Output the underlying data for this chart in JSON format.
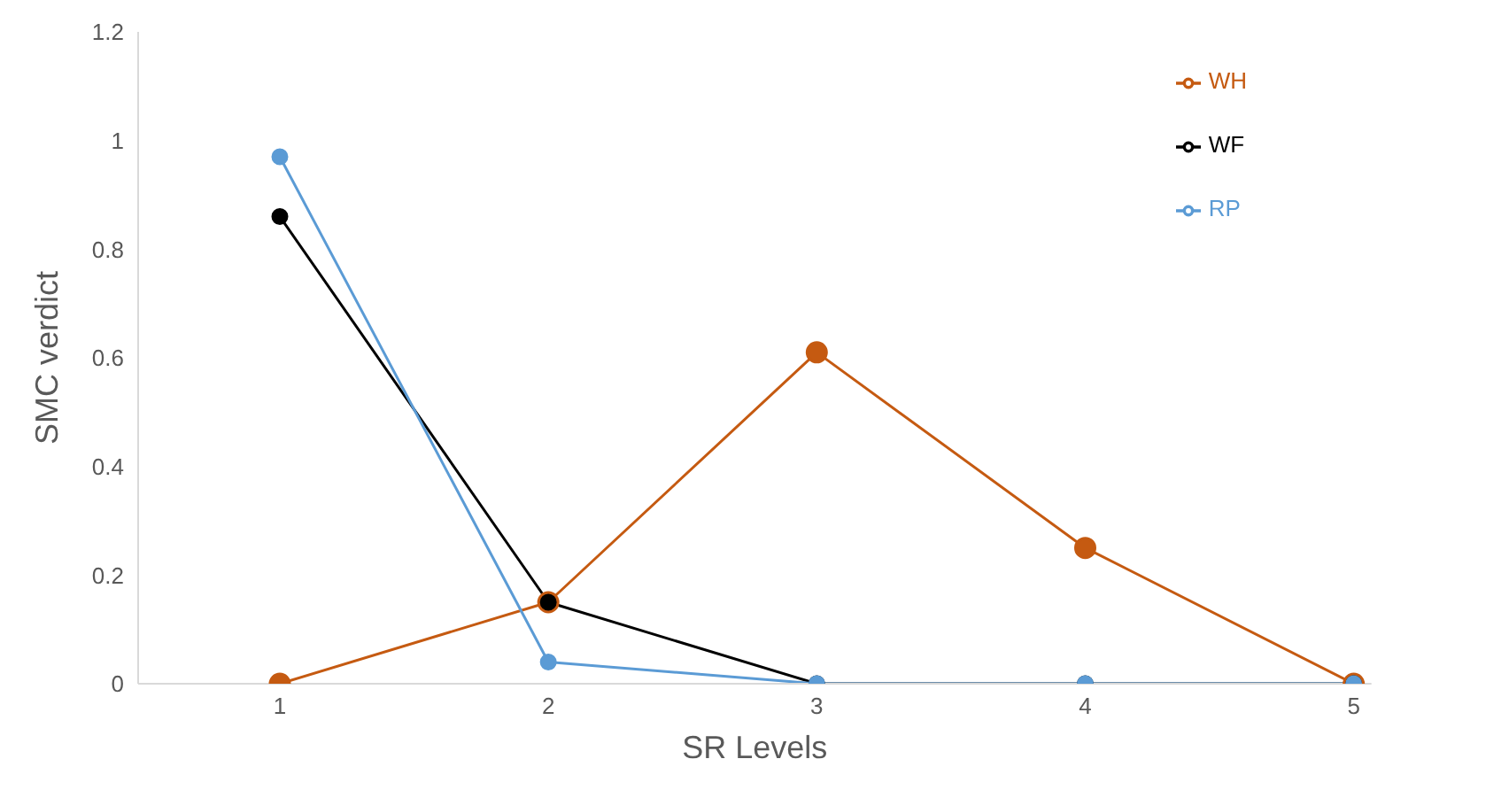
{
  "chart_data": {
    "type": "line",
    "xlabel": "SR Levels",
    "ylabel": "SMC verdict",
    "categories": [
      "1",
      "2",
      "3",
      "4",
      "5"
    ],
    "series": [
      {
        "name": "WH",
        "color": "#c55a11",
        "values": [
          0,
          0.15,
          0.61,
          0.25,
          0
        ]
      },
      {
        "name": "WF",
        "color": "#000000",
        "values": [
          0.86,
          0.15,
          0,
          0,
          0
        ]
      },
      {
        "name": "RP",
        "color": "#5b9bd5",
        "values": [
          0.97,
          0.04,
          0,
          0,
          0
        ]
      }
    ],
    "ylim": [
      0,
      1.2
    ],
    "yticks": [
      0,
      0.2,
      0.4,
      0.6,
      0.8,
      1,
      1.2
    ],
    "grid": false,
    "legend": "top right",
    "marker": "circle",
    "line_style": "solid"
  }
}
